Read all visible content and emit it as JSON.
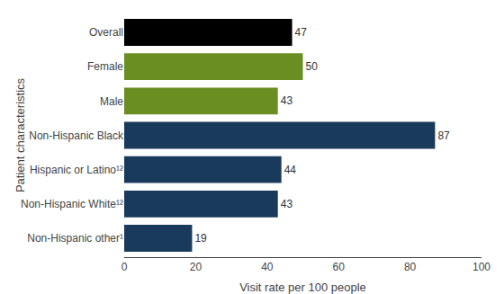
{
  "chart_data": {
    "type": "bar",
    "orientation": "horizontal",
    "categories": [
      "Non-Hispanic other¹",
      "Non-Hispanic White¹²",
      "Hispanic or Latino¹²",
      "Non-Hispanic Black",
      "Male",
      "Female",
      "Overall"
    ],
    "values": [
      19,
      43,
      44,
      87,
      43,
      50,
      47
    ],
    "colors": [
      "#1a3a5c",
      "#1a3a5c",
      "#1a3a5c",
      "#1a3a5c",
      "#6b8e23",
      "#6b8e23",
      "#000000"
    ],
    "xlabel": "Visit rate per 100 people",
    "ylabel": "Patient characteristics",
    "xlim": [
      0,
      100
    ],
    "xticks": [
      0,
      20,
      40,
      60,
      80,
      100
    ],
    "data_labels": true,
    "grid": false
  }
}
